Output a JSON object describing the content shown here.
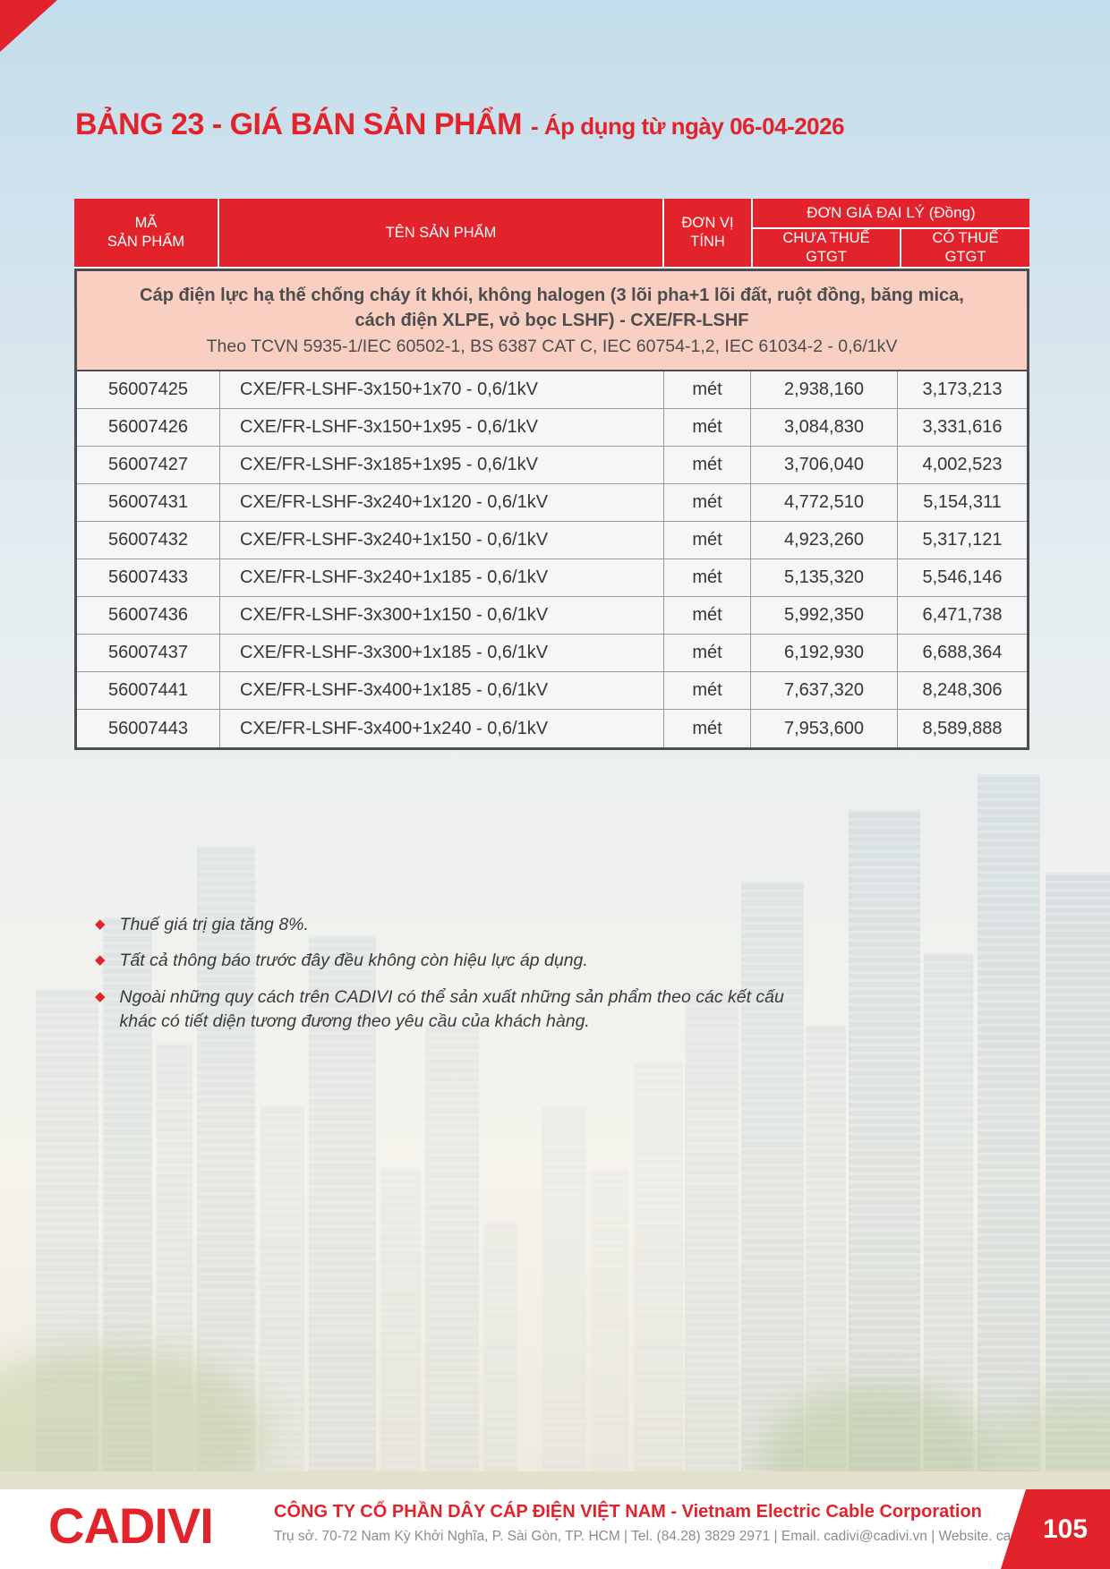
{
  "page": {
    "title_main": "BẢNG 23 - GIÁ BÁN SẢN PHẨM",
    "title_suffix": "- Áp dụng từ ngày 06-04-2026"
  },
  "colors": {
    "accent_red": "#E3232B",
    "section_pink": "#F8CFC0",
    "table_border_gray": "#4D4D4F",
    "footer_band_olive": "#E3E1CC"
  },
  "table": {
    "headers": {
      "code_label": "MÃ\nSẢN PHẨM",
      "name_label": "TÊN SẢN PHẨM",
      "unit_label": "ĐƠN VỊ\nTÍNH",
      "price_group_label": "ĐƠN GIÁ ĐẠI LÝ (Đồng)",
      "price_ex_label": "CHƯA THUẾ\nGTGT",
      "price_inc_label": "CÓ THUẾ\nGTGT"
    },
    "section": {
      "title": "Cáp điện lực hạ thế chống cháy ít khói, không halogen (3 lõi pha+1 lõi đất, ruột đồng, băng mica, cách điện XLPE, vỏ bọc LSHF) - CXE/FR-LSHF",
      "standard": "Theo TCVN 5935-1/IEC 60502-1, BS 6387 CAT C, IEC 60754-1,2, IEC 61034-2 - 0,6/1kV"
    },
    "rows": [
      {
        "code": "56007425",
        "name": "CXE/FR-LSHF-3x150+1x70 - 0,6/1kV",
        "unit": "mét",
        "price_ex": "2,938,160",
        "price_inc": "3,173,213"
      },
      {
        "code": "56007426",
        "name": "CXE/FR-LSHF-3x150+1x95 - 0,6/1kV",
        "unit": "mét",
        "price_ex": "3,084,830",
        "price_inc": "3,331,616"
      },
      {
        "code": "56007427",
        "name": "CXE/FR-LSHF-3x185+1x95 - 0,6/1kV",
        "unit": "mét",
        "price_ex": "3,706,040",
        "price_inc": "4,002,523"
      },
      {
        "code": "56007431",
        "name": "CXE/FR-LSHF-3x240+1x120 - 0,6/1kV",
        "unit": "mét",
        "price_ex": "4,772,510",
        "price_inc": "5,154,311"
      },
      {
        "code": "56007432",
        "name": "CXE/FR-LSHF-3x240+1x150 - 0,6/1kV",
        "unit": "mét",
        "price_ex": "4,923,260",
        "price_inc": "5,317,121"
      },
      {
        "code": "56007433",
        "name": "CXE/FR-LSHF-3x240+1x185 - 0,6/1kV",
        "unit": "mét",
        "price_ex": "5,135,320",
        "price_inc": "5,546,146"
      },
      {
        "code": "56007436",
        "name": "CXE/FR-LSHF-3x300+1x150 - 0,6/1kV",
        "unit": "mét",
        "price_ex": "5,992,350",
        "price_inc": "6,471,738"
      },
      {
        "code": "56007437",
        "name": "CXE/FR-LSHF-3x300+1x185 - 0,6/1kV",
        "unit": "mét",
        "price_ex": "6,192,930",
        "price_inc": "6,688,364"
      },
      {
        "code": "56007441",
        "name": "CXE/FR-LSHF-3x400+1x185 - 0,6/1kV",
        "unit": "mét",
        "price_ex": "7,637,320",
        "price_inc": "8,248,306"
      },
      {
        "code": "56007443",
        "name": "CXE/FR-LSHF-3x400+1x240 - 0,6/1kV",
        "unit": "mét",
        "price_ex": "7,953,600",
        "price_inc": "8,589,888"
      }
    ]
  },
  "notes": [
    "Thuế giá trị gia tăng 8%.",
    "Tất cả thông báo trước đây đều không còn hiệu lực áp dụng.",
    "Ngoài những quy cách trên CADIVI có thể sản xuất những sản phẩm theo các kết cấu khác có tiết diện tương đương theo yêu cầu của khách hàng."
  ],
  "footer": {
    "logo": "CADIVI",
    "company": "CÔNG TY CỔ PHẦN DÂY CÁP ĐIỆN VIỆT NAM - Vietnam Electric Cable Corporation",
    "address": "Trụ sở. 70-72 Nam Kỳ Khởi Nghĩa, P. Sài Gòn, TP. HCM | Tel. (84.28) 3829 2971 | Email. cadivi@cadivi.vn | Website. cadivi.vn",
    "page_number": "105"
  }
}
